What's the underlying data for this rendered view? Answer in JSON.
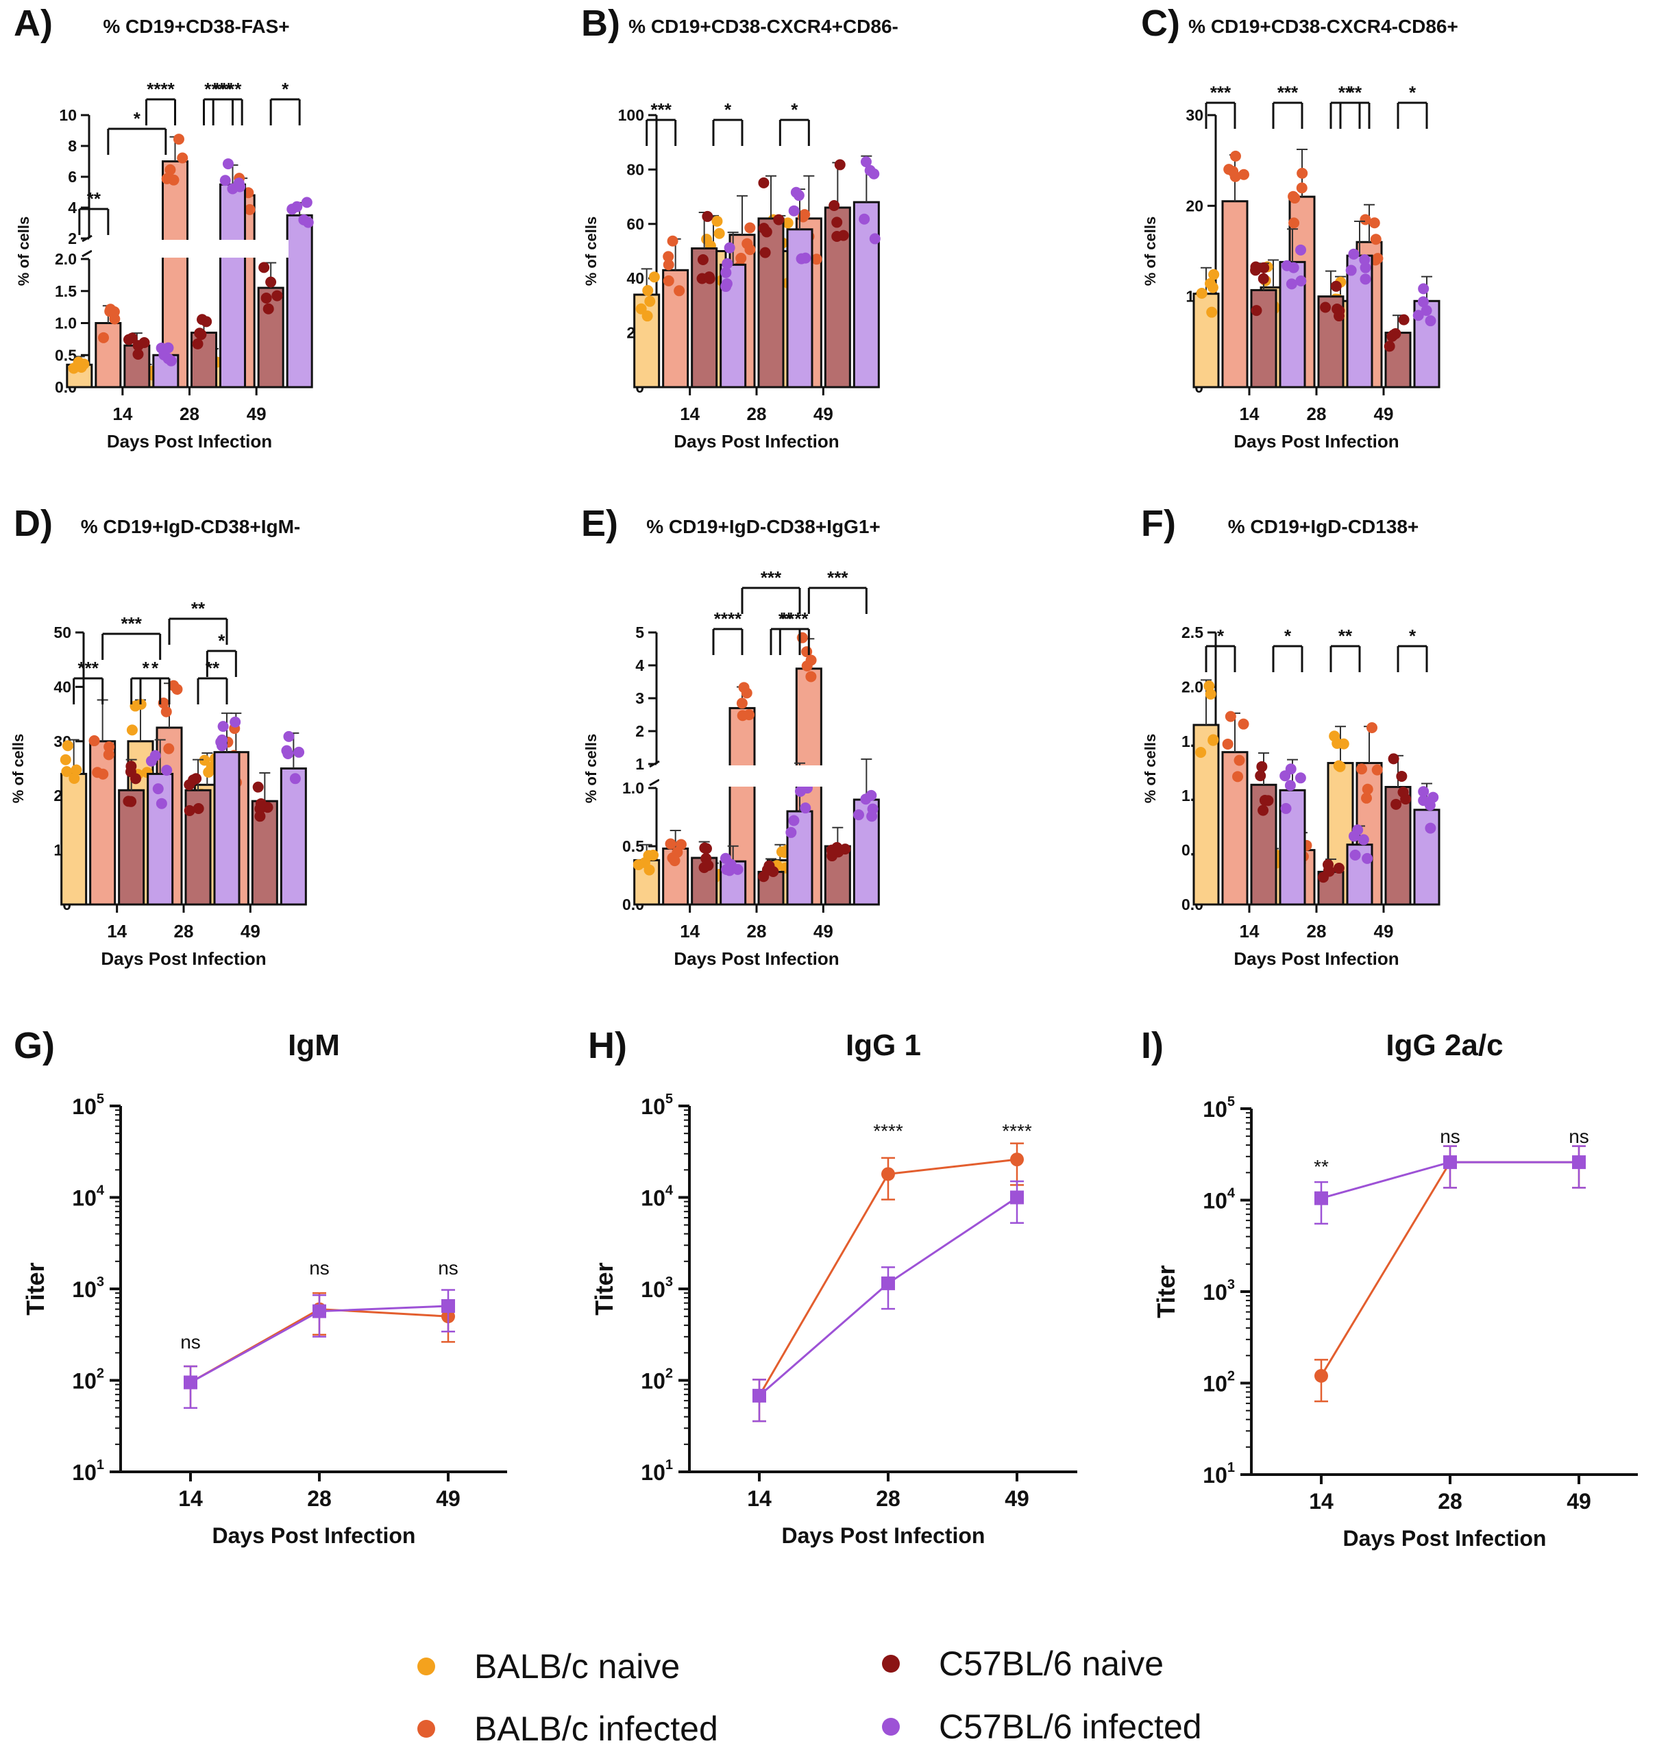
{
  "legend": [
    {
      "label": "BALB/c naive",
      "color": "#f4a21d"
    },
    {
      "label": "BALB/c infected",
      "color": "#e35e2e"
    },
    {
      "label": "C57BL/6 naive",
      "color": "#8b1414"
    },
    {
      "label": "C57BL/6 infected",
      "color": "#9d52d6"
    }
  ],
  "chart_data": [
    {
      "panel": "A)",
      "type": "bar",
      "title": "% CD19+CD38-FAS+",
      "title_sup": [
        "",
        "+",
        "CD38",
        "-",
        "FAS",
        "+"
      ],
      "ylabel": "% of cells",
      "xlabel": "Days Post Infection",
      "categories": [
        "14",
        "28",
        "49"
      ],
      "axis_break": {
        "lower": [
          0,
          2.0
        ],
        "upper": [
          2,
          10
        ]
      },
      "yticks": [
        "0.0",
        "0.5",
        "1.0",
        "1.5",
        "2.0",
        "2",
        "4",
        "6",
        "8",
        "10"
      ],
      "series": [
        {
          "name": "BALB/c naive",
          "values": [
            0.35,
            0.25,
            0.45
          ]
        },
        {
          "name": "BALB/c infected",
          "values": [
            1.0,
            7.0,
            4.8
          ]
        },
        {
          "name": "C57BL/6 naive",
          "values": [
            0.65,
            0.85,
            1.55
          ]
        },
        {
          "name": "C57BL/6 infected",
          "values": [
            0.5,
            5.5,
            3.5
          ]
        }
      ],
      "significance": [
        "**",
        "*",
        "****",
        "****",
        "****",
        "*"
      ]
    },
    {
      "panel": "B)",
      "type": "bar",
      "title": "% CD19+CD38-CXCR4+CD86-",
      "ylabel": "% of cells",
      "xlabel": "Days Post Infection",
      "categories": [
        "14",
        "28",
        "49"
      ],
      "ylim": [
        0,
        100
      ],
      "yticks": [
        "0",
        "20",
        "40",
        "60",
        "80",
        "100"
      ],
      "series": [
        {
          "name": "BALB/c naive",
          "values": [
            34,
            50,
            50
          ]
        },
        {
          "name": "BALB/c infected",
          "values": [
            43,
            56,
            62
          ]
        },
        {
          "name": "C57BL/6 naive",
          "values": [
            51,
            62,
            66
          ]
        },
        {
          "name": "C57BL/6 infected",
          "values": [
            45,
            58,
            68
          ]
        }
      ],
      "significance": [
        "***",
        "*",
        "*"
      ]
    },
    {
      "panel": "C)",
      "type": "bar",
      "title": "% CD19+CD38-CXCR4-CD86+",
      "ylabel": "% of cells",
      "xlabel": "Days Post Infection",
      "categories": [
        "14",
        "28",
        "49"
      ],
      "ylim": [
        0,
        30
      ],
      "yticks": [
        "0",
        "10",
        "20",
        "30"
      ],
      "series": [
        {
          "name": "BALB/c naive",
          "values": [
            10.3,
            11.0,
            9.5
          ]
        },
        {
          "name": "BALB/c infected",
          "values": [
            20.5,
            21.0,
            16.0
          ]
        },
        {
          "name": "C57BL/6 naive",
          "values": [
            10.7,
            10.0,
            6.0
          ]
        },
        {
          "name": "C57BL/6 infected",
          "values": [
            13.8,
            14.5,
            9.5
          ]
        }
      ],
      "significance": [
        "***",
        "***",
        "**",
        "**",
        "*"
      ]
    },
    {
      "panel": "D)",
      "type": "bar",
      "title": "% CD19+IgD-CD38+IgM-",
      "ylabel": "% of cells",
      "xlabel": "Days Post Infection",
      "categories": [
        "14",
        "28",
        "49"
      ],
      "ylim": [
        0,
        50
      ],
      "yticks": [
        "0",
        "10",
        "20",
        "30",
        "40",
        "50"
      ],
      "series": [
        {
          "name": "BALB/c naive",
          "values": [
            24,
            30,
            22
          ]
        },
        {
          "name": "BALB/c infected",
          "values": [
            30,
            32.5,
            28
          ]
        },
        {
          "name": "C57BL/6 naive",
          "values": [
            21,
            21,
            19
          ]
        },
        {
          "name": "C57BL/6 infected",
          "values": [
            24,
            28,
            25
          ]
        }
      ],
      "significance": [
        "***",
        "***",
        "*",
        "*",
        "**",
        "**",
        "*"
      ]
    },
    {
      "panel": "E)",
      "type": "bar",
      "title": "% CD19+IgD-CD38+IgG1+",
      "ylabel": "% of cells",
      "xlabel": "Days Post Infection",
      "categories": [
        "14",
        "28",
        "49"
      ],
      "axis_break": {
        "lower": [
          0,
          1.0
        ],
        "upper": [
          1,
          5
        ]
      },
      "yticks": [
        "0.0",
        "0.5",
        "1.0",
        "1",
        "2",
        "3",
        "4",
        "5"
      ],
      "series": [
        {
          "name": "BALB/c naive",
          "values": [
            0.38,
            0.25,
            0.38
          ]
        },
        {
          "name": "BALB/c infected",
          "values": [
            0.48,
            2.7,
            3.9
          ]
        },
        {
          "name": "C57BL/6 naive",
          "values": [
            0.4,
            0.28,
            0.5
          ]
        },
        {
          "name": "C57BL/6 infected",
          "values": [
            0.37,
            0.8,
            0.9
          ]
        }
      ],
      "significance": [
        "****",
        "***",
        "**",
        "****",
        "***"
      ]
    },
    {
      "panel": "F)",
      "type": "bar",
      "title": "% CD19+IgD-CD138+",
      "ylabel": "% of cells",
      "xlabel": "Days Post Infection",
      "categories": [
        "14",
        "28",
        "49"
      ],
      "ylim": [
        0,
        2.5
      ],
      "yticks": [
        "0.0",
        "0.5",
        "1.0",
        "1.5",
        "2.0",
        "2.5"
      ],
      "series": [
        {
          "name": "BALB/c naive",
          "values": [
            1.65,
            0.38,
            1.3
          ]
        },
        {
          "name": "BALB/c infected",
          "values": [
            1.4,
            0.5,
            1.3
          ]
        },
        {
          "name": "C57BL/6 naive",
          "values": [
            1.1,
            0.3,
            1.08
          ]
        },
        {
          "name": "C57BL/6 infected",
          "values": [
            1.05,
            0.55,
            0.87
          ]
        }
      ],
      "significance": [
        "*",
        "*",
        "**",
        "*"
      ]
    },
    {
      "panel": "G)",
      "type": "line",
      "title": "IgM",
      "yscale": "log",
      "ylabel": "Titer",
      "xlabel": "Days Post Infection",
      "categories": [
        "14",
        "28",
        "49"
      ],
      "ylim": [
        10,
        100000
      ],
      "yticks": [
        "10",
        "10",
        "10",
        "10",
        "10"
      ],
      "ytick_exp": [
        "1",
        "2",
        "3",
        "4",
        "5"
      ],
      "series": [
        {
          "name": "BALB/c infected",
          "values": [
            95,
            600,
            500
          ]
        },
        {
          "name": "C57BL/6 infected",
          "values": [
            95,
            570,
            650
          ]
        }
      ],
      "significance": [
        "ns",
        "ns",
        "ns"
      ]
    },
    {
      "panel": "H)",
      "type": "line",
      "title": "IgG 1",
      "yscale": "log",
      "ylabel": "Titer",
      "xlabel": "Days Post Infection",
      "categories": [
        "14",
        "28",
        "49"
      ],
      "ylim": [
        10,
        100000
      ],
      "yticks": [
        "10",
        "10",
        "10",
        "10",
        "10"
      ],
      "ytick_exp": [
        "1",
        "2",
        "3",
        "4",
        "5"
      ],
      "series": [
        {
          "name": "BALB/c infected",
          "values": [
            68,
            18000,
            26000
          ]
        },
        {
          "name": "C57BL/6 infected",
          "values": [
            68,
            1150,
            10000
          ]
        }
      ],
      "significance": [
        "****",
        "****"
      ]
    },
    {
      "panel": "I)",
      "type": "line",
      "title": "IgG 2a/c",
      "yscale": "log",
      "ylabel": "Titer",
      "xlabel": "Days Post Infection",
      "categories": [
        "14",
        "28",
        "49"
      ],
      "ylim": [
        10,
        100000
      ],
      "yticks": [
        "10",
        "10",
        "10",
        "10",
        "10"
      ],
      "ytick_exp": [
        "1",
        "2",
        "3",
        "4",
        "5"
      ],
      "series": [
        {
          "name": "BALB/c infected",
          "values": [
            120,
            26000,
            26000
          ]
        },
        {
          "name": "C57BL/6 infected",
          "values": [
            10500,
            26000,
            26000
          ]
        }
      ],
      "significance": [
        "**",
        "ns",
        "ns"
      ]
    }
  ]
}
